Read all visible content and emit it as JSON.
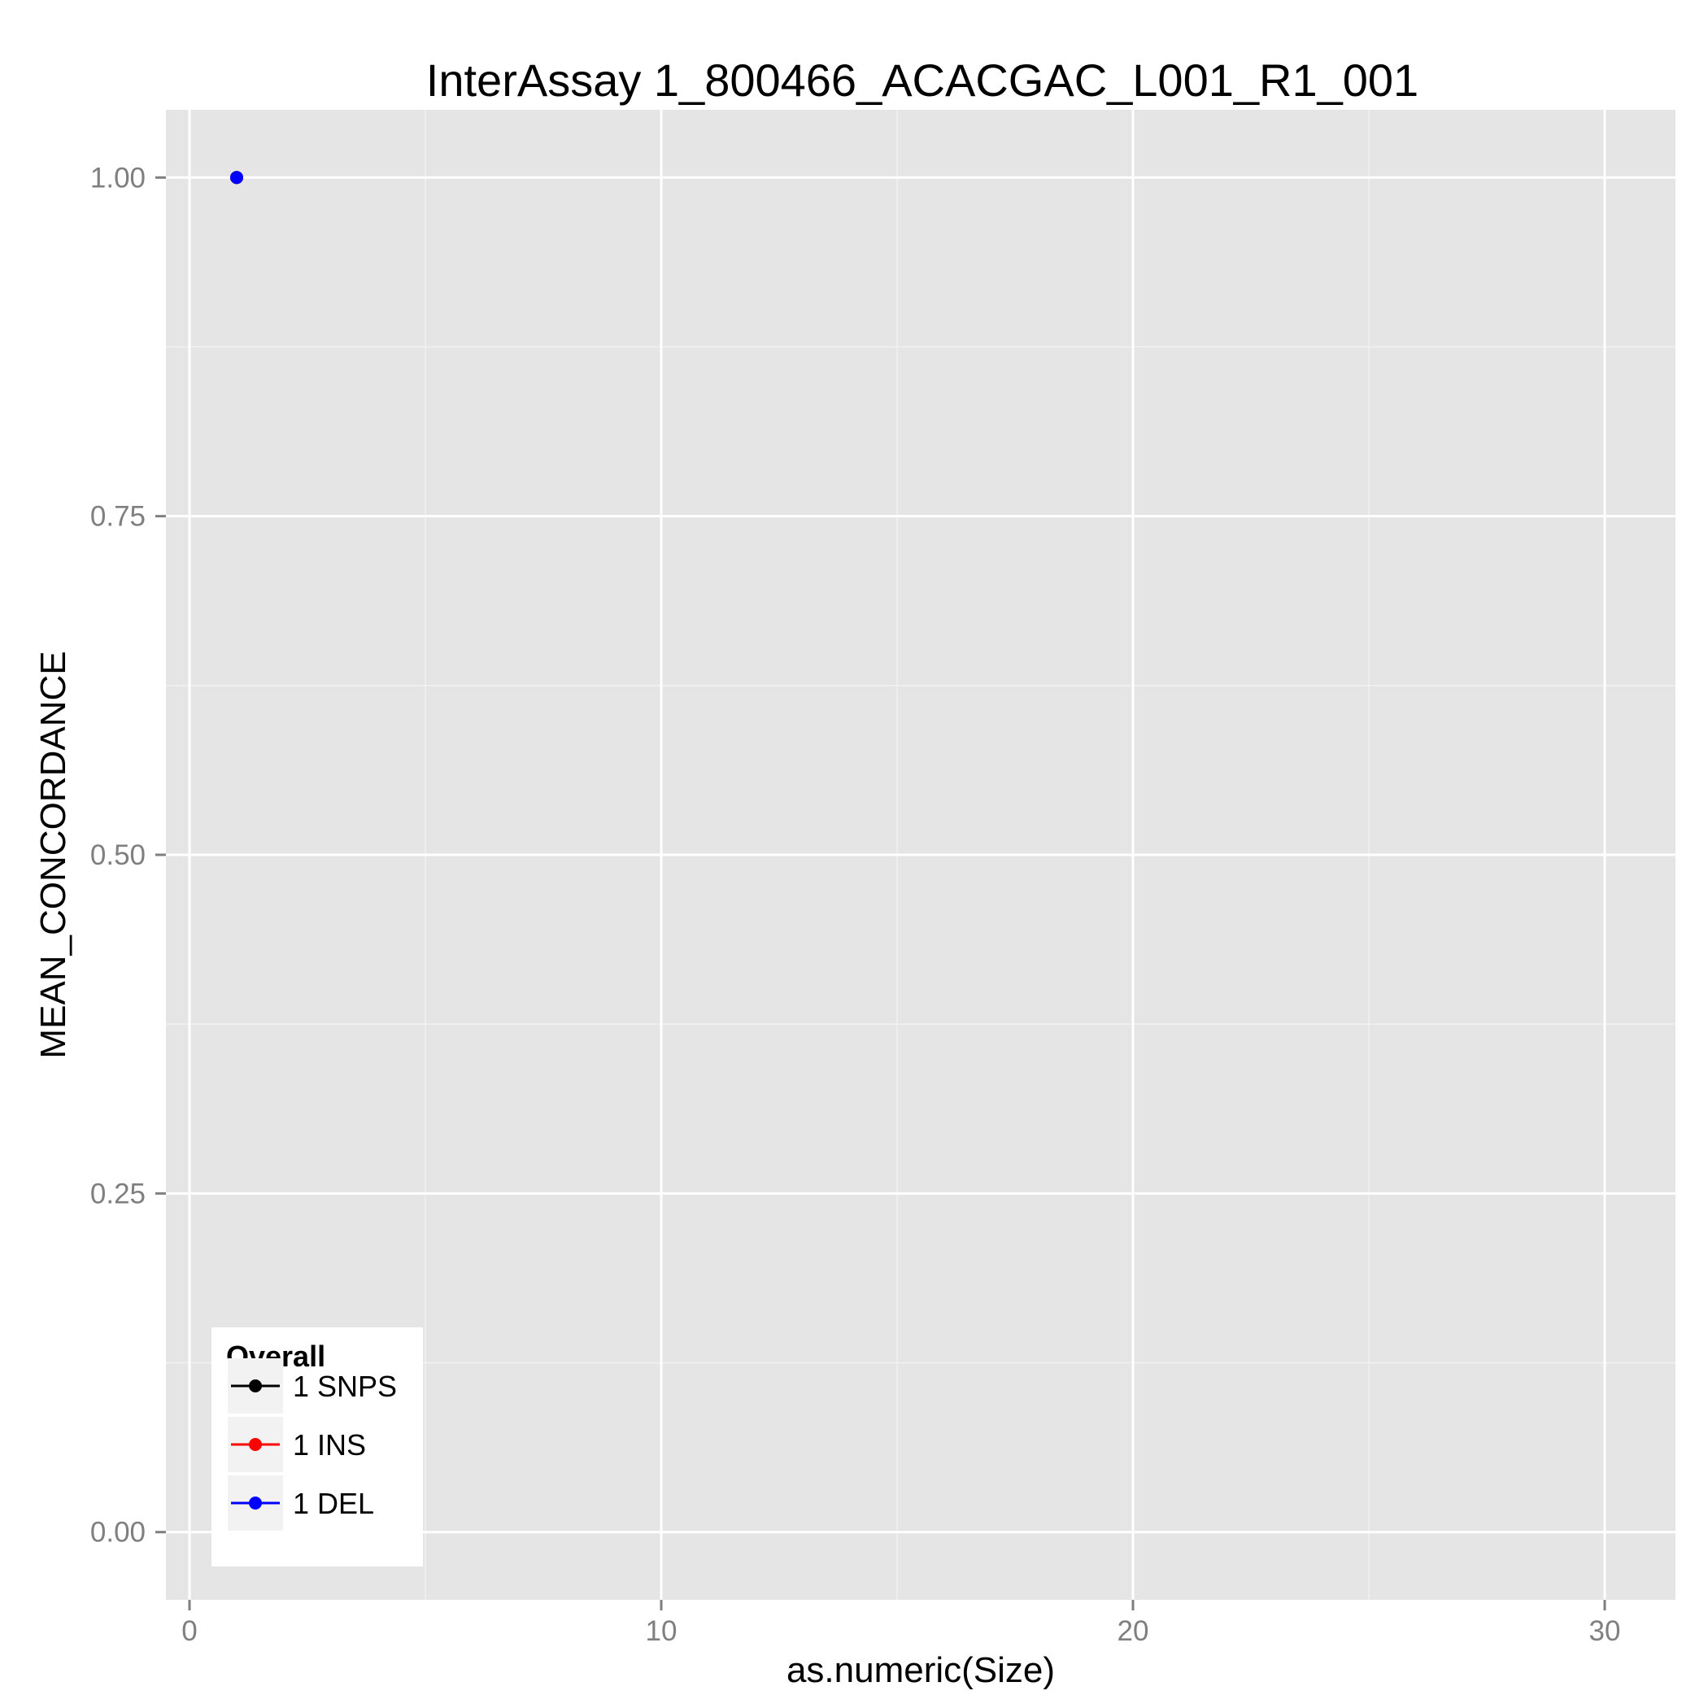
{
  "chart_data": {
    "type": "line",
    "title": "InterAssay 1_800466_ACACGAC_L001_R1_001",
    "xlabel": "as.numeric(Size)",
    "ylabel": "MEAN_CONCORDANCE",
    "xlim": [
      -0.5,
      31.5
    ],
    "ylim": [
      -0.05,
      1.05
    ],
    "x_ticks": [
      0,
      10,
      20,
      30
    ],
    "x_tick_labels": [
      "0",
      "10",
      "20",
      "30"
    ],
    "y_ticks": [
      0,
      0.25,
      0.5,
      0.75,
      1
    ],
    "y_tick_labels": [
      "0.00",
      "0.25",
      "0.50",
      "0.75",
      "1.00"
    ],
    "grid": true,
    "legend": {
      "title": "Overall",
      "placement": "bottom-left",
      "entries": [
        "1 SNPS",
        "1 INS",
        "1 DEL"
      ]
    },
    "series": [
      {
        "name": "1 SNPS",
        "color": "#000000",
        "x": [
          1
        ],
        "y": [
          1.0
        ]
      },
      {
        "name": "1 INS",
        "color": "#ff0000",
        "x": [
          1
        ],
        "y": [
          1.0
        ]
      },
      {
        "name": "1 DEL",
        "color": "#0000ff",
        "x": [
          1
        ],
        "y": [
          1.0
        ]
      }
    ]
  }
}
